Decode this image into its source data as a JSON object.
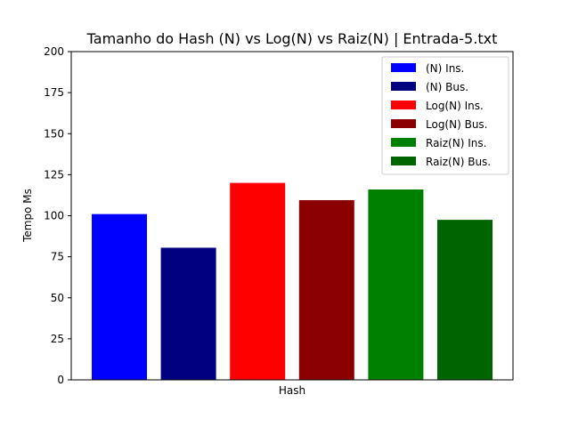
{
  "chart_data": {
    "type": "bar",
    "title": "Tamanho do Hash (N) vs Log(N) vs Raiz(N) | Entrada-5.txt",
    "xlabel": "Hash",
    "ylabel": "Tempo Ms",
    "ylim": [
      0,
      200
    ],
    "yticks": [
      0,
      25,
      50,
      75,
      100,
      125,
      150,
      175,
      200
    ],
    "grid": false,
    "legend_position": "top-right",
    "series": [
      {
        "name": "(N) Ins.",
        "value": 101,
        "color": "#0000ff"
      },
      {
        "name": "(N) Bus.",
        "value": 80.5,
        "color": "#000080"
      },
      {
        "name": "Log(N) Ins.",
        "value": 120,
        "color": "#ff0000"
      },
      {
        "name": "Log(N) Bus.",
        "value": 109.5,
        "color": "#8b0000"
      },
      {
        "name": "Raiz(N) Ins.",
        "value": 116,
        "color": "#008000"
      },
      {
        "name": "Raiz(N) Bus.",
        "value": 97.5,
        "color": "#006400"
      }
    ]
  }
}
